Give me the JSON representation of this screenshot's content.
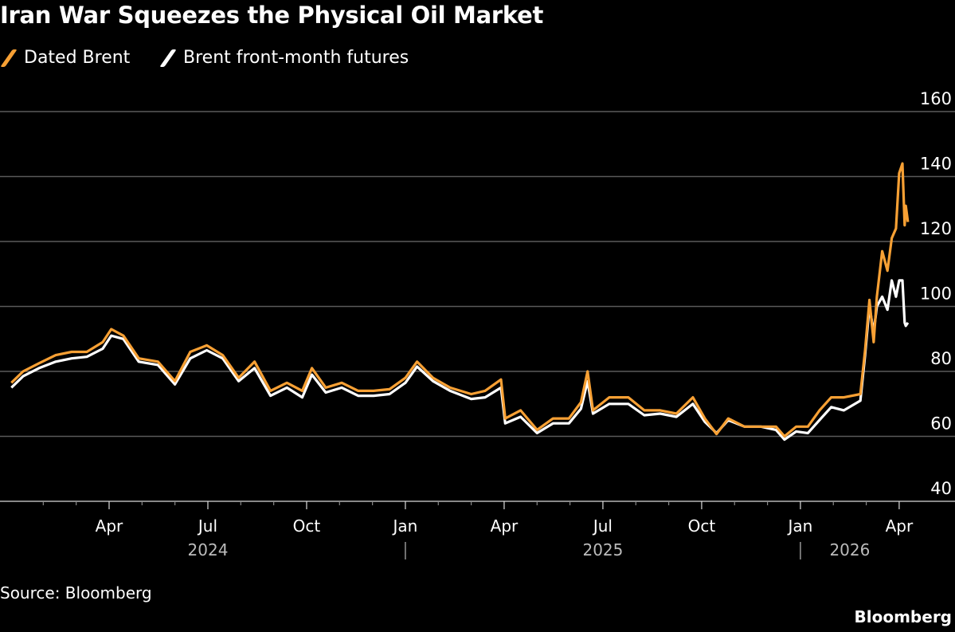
{
  "chart_data": {
    "type": "line",
    "title": "Iran War Squeezes the Physical Oil Market",
    "source": "Source: Bloomberg",
    "brand": "Bloomberg",
    "ylim": [
      40,
      160
    ],
    "yticks": [
      40,
      60,
      80,
      100,
      120,
      140,
      160
    ],
    "grid": true,
    "legend_placement": "top-left",
    "x_tick_labels": [
      {
        "label": "Apr",
        "date": "2024-04-01"
      },
      {
        "label": "Jul",
        "date": "2024-07-01"
      },
      {
        "label": "Oct",
        "date": "2024-10-01"
      },
      {
        "label": "Jan",
        "date": "2025-01-01"
      },
      {
        "label": "Apr",
        "date": "2025-04-01"
      },
      {
        "label": "Jul",
        "date": "2025-07-01"
      },
      {
        "label": "Oct",
        "date": "2025-10-01"
      },
      {
        "label": "Jan",
        "date": "2026-01-01"
      },
      {
        "label": "Apr",
        "date": "2026-04-01"
      }
    ],
    "year_labels": [
      {
        "label": "2024",
        "date": "2024-07-01"
      },
      {
        "label": "2025",
        "date": "2025-07-01"
      },
      {
        "label": "2026",
        "date": "2026-02-15"
      }
    ],
    "series": [
      {
        "name": "Dated Brent",
        "color": "#f7a034",
        "points": [
          [
            "2024-01-02",
            76.5
          ],
          [
            "2024-01-13",
            80
          ],
          [
            "2024-01-28",
            82.5
          ],
          [
            "2024-02-12",
            85
          ],
          [
            "2024-02-26",
            86
          ],
          [
            "2024-03-11",
            86
          ],
          [
            "2024-03-26",
            89
          ],
          [
            "2024-04-03",
            93
          ],
          [
            "2024-04-14",
            91
          ],
          [
            "2024-04-28",
            84
          ],
          [
            "2024-05-16",
            83
          ],
          [
            "2024-06-01",
            77
          ],
          [
            "2024-06-15",
            86
          ],
          [
            "2024-06-30",
            88
          ],
          [
            "2024-07-15",
            85
          ],
          [
            "2024-07-30",
            78
          ],
          [
            "2024-08-14",
            83
          ],
          [
            "2024-08-29",
            74
          ],
          [
            "2024-09-13",
            76.5
          ],
          [
            "2024-09-27",
            74
          ],
          [
            "2024-10-06",
            81
          ],
          [
            "2024-10-19",
            75
          ],
          [
            "2024-11-03",
            76.5
          ],
          [
            "2024-11-18",
            74
          ],
          [
            "2024-12-02",
            74
          ],
          [
            "2024-12-17",
            74.5
          ],
          [
            "2025-01-01",
            78
          ],
          [
            "2025-01-12",
            83
          ],
          [
            "2025-01-27",
            78
          ],
          [
            "2025-02-11",
            75
          ],
          [
            "2025-03-01",
            73
          ],
          [
            "2025-03-14",
            74
          ],
          [
            "2025-03-29",
            77.5
          ],
          [
            "2025-04-02",
            65.5
          ],
          [
            "2025-04-16",
            68
          ],
          [
            "2025-05-01",
            62
          ],
          [
            "2025-05-16",
            65.5
          ],
          [
            "2025-05-31",
            65.5
          ],
          [
            "2025-06-11",
            70.5
          ],
          [
            "2025-06-17",
            80
          ],
          [
            "2025-06-22",
            68
          ],
          [
            "2025-07-07",
            72
          ],
          [
            "2025-07-25",
            72
          ],
          [
            "2025-08-09",
            68
          ],
          [
            "2025-08-24",
            68
          ],
          [
            "2025-09-08",
            67
          ],
          [
            "2025-09-23",
            72
          ],
          [
            "2025-10-04",
            65.5
          ],
          [
            "2025-10-15",
            60.7
          ],
          [
            "2025-10-26",
            65.5
          ],
          [
            "2025-11-10",
            63
          ],
          [
            "2025-11-25",
            63
          ],
          [
            "2025-12-09",
            63
          ],
          [
            "2025-12-17",
            60
          ],
          [
            "2025-12-28",
            63
          ],
          [
            "2026-01-08",
            63
          ],
          [
            "2026-01-19",
            68
          ],
          [
            "2026-01-30",
            72
          ],
          [
            "2026-02-10",
            72
          ],
          [
            "2026-02-24",
            73
          ],
          [
            "2026-02-28",
            86.5
          ],
          [
            "2026-03-04",
            102
          ],
          [
            "2026-03-08",
            89
          ],
          [
            "2026-03-11",
            103
          ],
          [
            "2026-03-16",
            117
          ],
          [
            "2026-03-21",
            111
          ],
          [
            "2026-03-25",
            121
          ],
          [
            "2026-03-29",
            124
          ],
          [
            "2026-04-01",
            141
          ],
          [
            "2026-04-04",
            144
          ],
          [
            "2026-04-06",
            125
          ],
          [
            "2026-04-07",
            131
          ],
          [
            "2026-04-09",
            126
          ]
        ]
      },
      {
        "name": "Brent front-month futures",
        "color": "#ffffff",
        "points": [
          [
            "2024-01-02",
            75
          ],
          [
            "2024-01-13",
            78.5
          ],
          [
            "2024-01-28",
            81
          ],
          [
            "2024-02-12",
            83
          ],
          [
            "2024-02-26",
            84
          ],
          [
            "2024-03-11",
            84.5
          ],
          [
            "2024-03-26",
            87
          ],
          [
            "2024-04-03",
            91
          ],
          [
            "2024-04-14",
            90
          ],
          [
            "2024-04-28",
            83
          ],
          [
            "2024-05-16",
            82
          ],
          [
            "2024-06-01",
            76
          ],
          [
            "2024-06-15",
            84
          ],
          [
            "2024-06-30",
            86.5
          ],
          [
            "2024-07-15",
            84
          ],
          [
            "2024-07-30",
            77
          ],
          [
            "2024-08-14",
            81
          ],
          [
            "2024-08-29",
            72.5
          ],
          [
            "2024-09-13",
            75
          ],
          [
            "2024-09-27",
            72
          ],
          [
            "2024-10-06",
            79
          ],
          [
            "2024-10-19",
            73.5
          ],
          [
            "2024-11-03",
            75
          ],
          [
            "2024-11-18",
            72.5
          ],
          [
            "2024-12-02",
            72.5
          ],
          [
            "2024-12-17",
            73
          ],
          [
            "2025-01-01",
            76.5
          ],
          [
            "2025-01-12",
            81.5
          ],
          [
            "2025-01-27",
            77
          ],
          [
            "2025-02-11",
            74
          ],
          [
            "2025-03-01",
            71.5
          ],
          [
            "2025-03-14",
            72
          ],
          [
            "2025-03-29",
            75
          ],
          [
            "2025-04-02",
            64
          ],
          [
            "2025-04-16",
            66
          ],
          [
            "2025-05-01",
            61
          ],
          [
            "2025-05-16",
            64
          ],
          [
            "2025-05-31",
            64
          ],
          [
            "2025-06-11",
            68.5
          ],
          [
            "2025-06-17",
            77
          ],
          [
            "2025-06-22",
            67
          ],
          [
            "2025-07-07",
            70
          ],
          [
            "2025-07-25",
            70
          ],
          [
            "2025-08-09",
            66.5
          ],
          [
            "2025-08-24",
            67
          ],
          [
            "2025-09-08",
            66
          ],
          [
            "2025-09-23",
            70
          ],
          [
            "2025-10-04",
            64.5
          ],
          [
            "2025-10-15",
            61
          ],
          [
            "2025-10-26",
            65
          ],
          [
            "2025-11-10",
            63
          ],
          [
            "2025-11-25",
            63
          ],
          [
            "2025-12-09",
            62
          ],
          [
            "2025-12-17",
            59
          ],
          [
            "2025-12-28",
            61.5
          ],
          [
            "2026-01-08",
            61
          ],
          [
            "2026-01-19",
            65
          ],
          [
            "2026-01-30",
            69
          ],
          [
            "2026-02-10",
            68
          ],
          [
            "2026-02-24",
            71
          ],
          [
            "2026-02-28",
            85
          ],
          [
            "2026-03-04",
            100
          ],
          [
            "2026-03-08",
            92
          ],
          [
            "2026-03-11",
            100
          ],
          [
            "2026-03-16",
            103
          ],
          [
            "2026-03-21",
            99
          ],
          [
            "2026-03-25",
            108
          ],
          [
            "2026-03-29",
            103
          ],
          [
            "2026-04-01",
            108
          ],
          [
            "2026-04-04",
            108
          ],
          [
            "2026-04-06",
            95
          ],
          [
            "2026-04-07",
            94
          ],
          [
            "2026-04-09",
            95
          ]
        ]
      }
    ]
  }
}
